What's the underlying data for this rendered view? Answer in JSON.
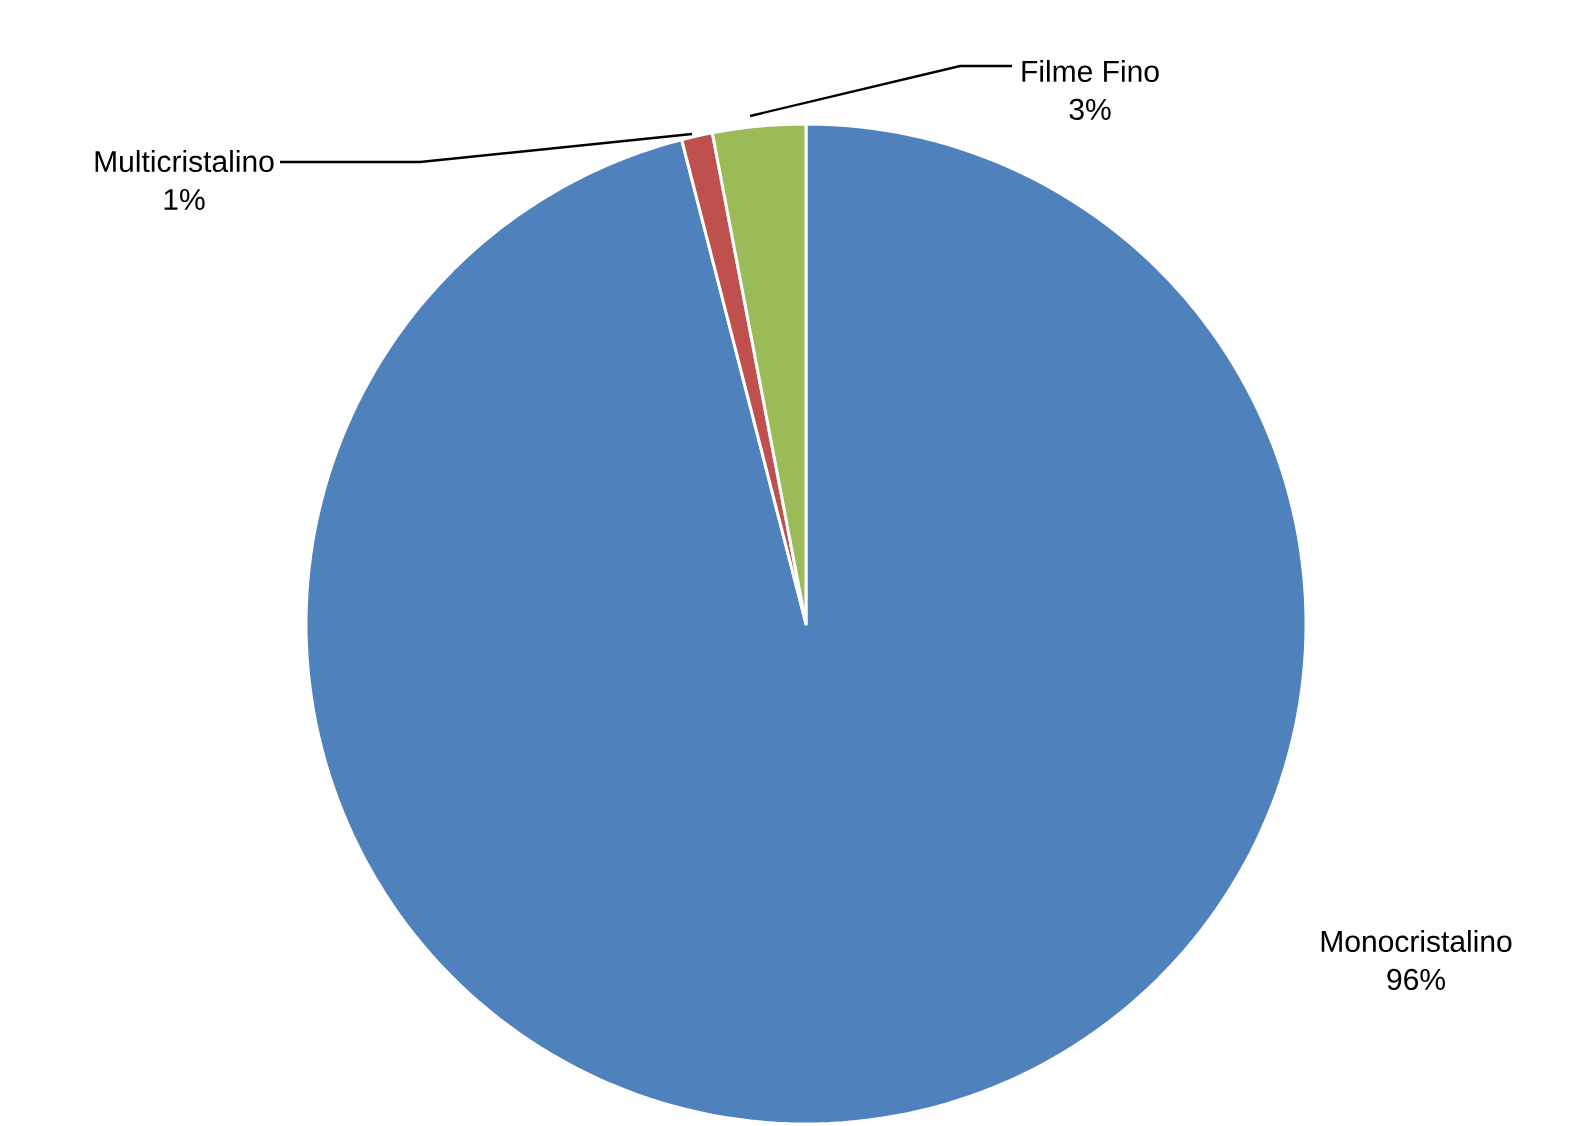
{
  "chart_data": {
    "type": "pie",
    "categories": [
      "Monocristalino",
      "Multicristalino",
      "Filme Fino"
    ],
    "values": [
      96,
      1,
      3
    ],
    "colors": [
      "#4f81bd",
      "#c0504d",
      "#9bbb59"
    ],
    "value_labels": [
      "96%",
      "1%",
      "3%"
    ]
  }
}
